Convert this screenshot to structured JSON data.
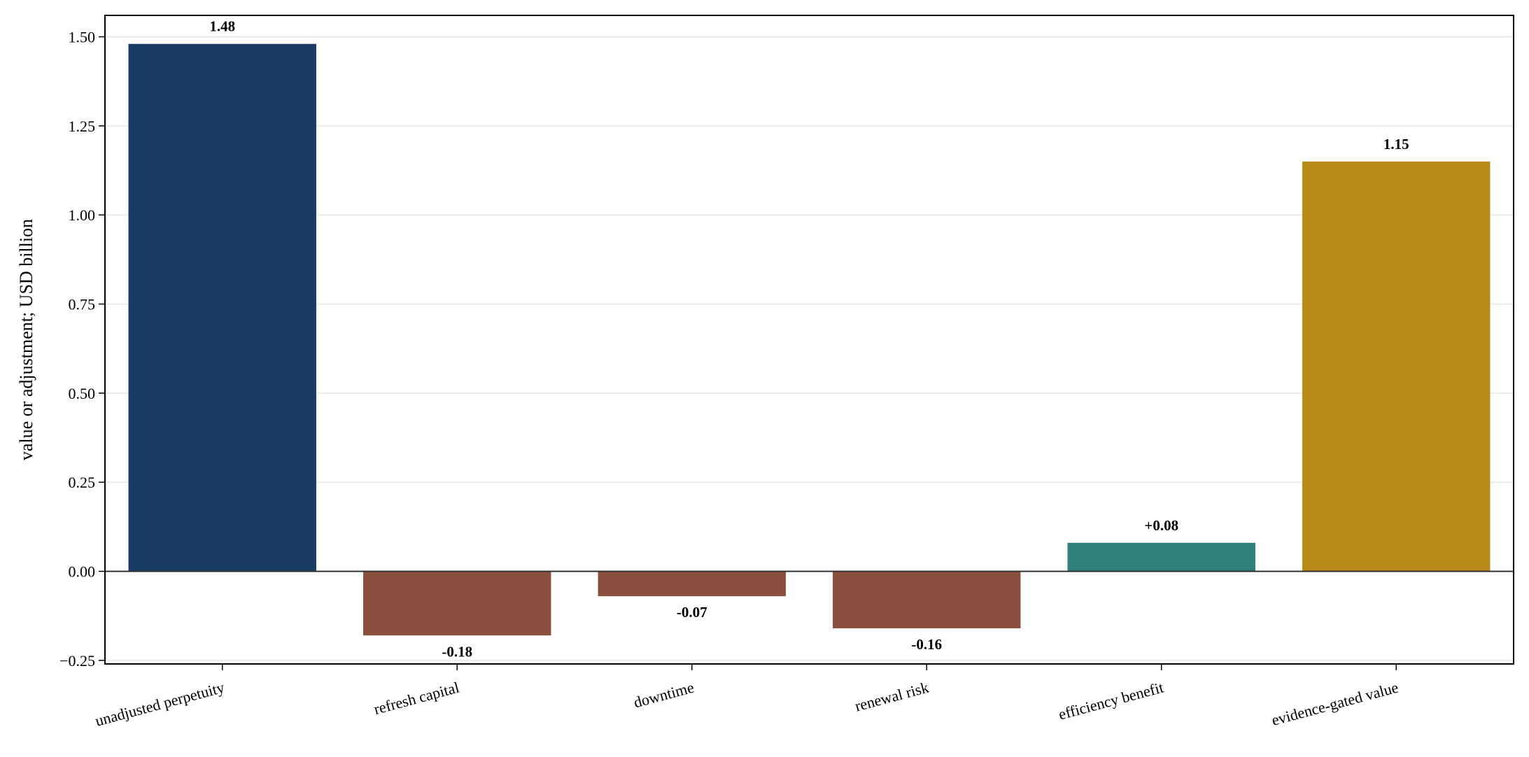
{
  "chart_data": {
    "type": "bar",
    "title": "",
    "xlabel": "",
    "ylabel": "value or adjustment; USD billion",
    "categories": [
      "unadjusted perpetuity",
      "refresh capital",
      "downtime",
      "renewal risk",
      "efficiency benefit",
      "evidence-gated value"
    ],
    "values": [
      1.48,
      -0.18,
      -0.07,
      -0.16,
      0.08,
      1.15
    ],
    "value_labels": [
      "1.48",
      "-0.18",
      "-0.07",
      "-0.16",
      "+0.08",
      "1.15"
    ],
    "bar_colors": [
      "#1a3b66",
      "#8b4f3d",
      "#8b4f3d",
      "#8b4f3d",
      "#2e7e79",
      "#b78a1a"
    ],
    "yticks": [
      -0.25,
      0.0,
      0.25,
      0.5,
      0.75,
      1.0,
      1.25,
      1.5
    ],
    "ytick_labels": [
      "−0.25",
      "0.00",
      "0.25",
      "0.50",
      "0.75",
      "1.00",
      "1.25",
      "1.50"
    ],
    "ylim": [
      -0.26,
      1.56
    ],
    "grid": "horizontal",
    "zero_line": true,
    "legend": "none"
  }
}
